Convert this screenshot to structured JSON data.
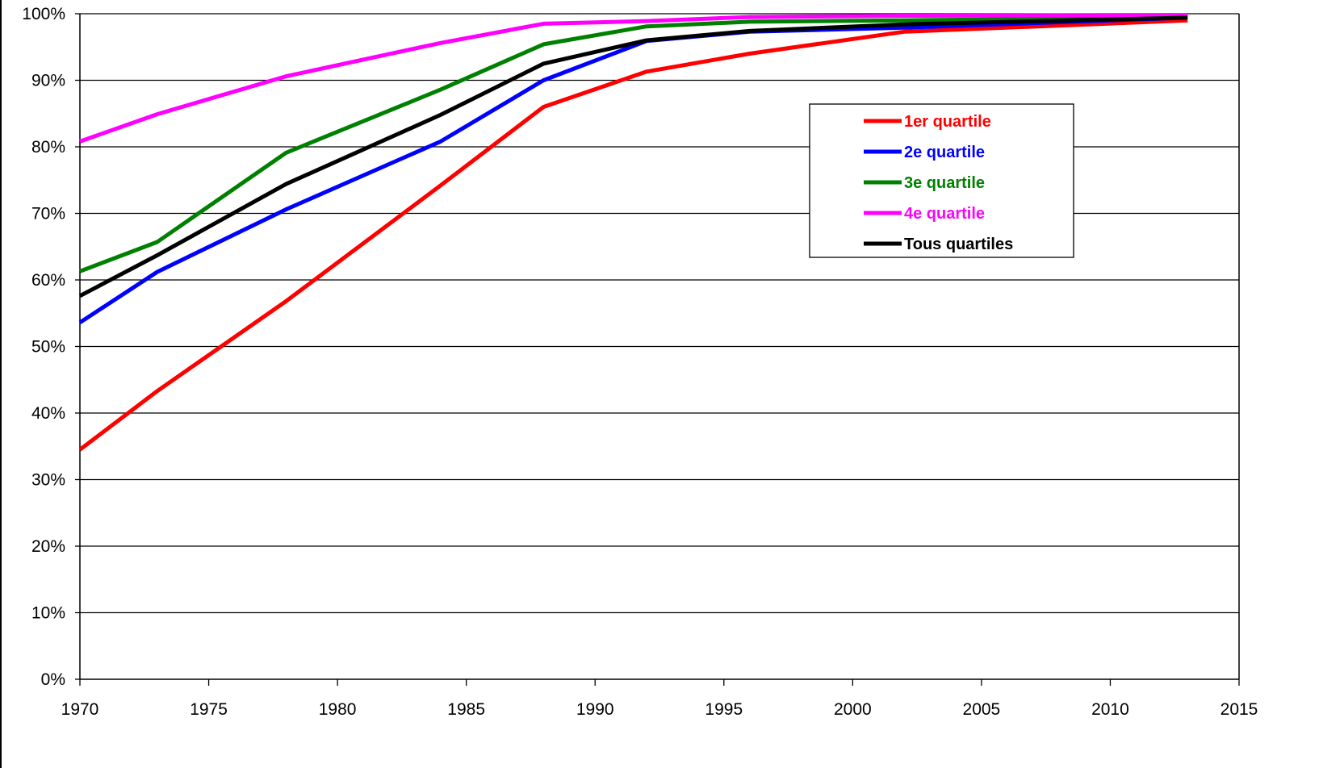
{
  "colors": {
    "background": "#ffffff",
    "gridline": "#000000",
    "axis": "#000000",
    "text": "#000000"
  },
  "chart_data": {
    "type": "line",
    "title": "",
    "xlabel": "",
    "ylabel": "",
    "xlim": [
      1970,
      2015
    ],
    "ylim": [
      0,
      100
    ],
    "x_ticks": [
      1970,
      1975,
      1980,
      1985,
      1990,
      1995,
      2000,
      2005,
      2010,
      2015
    ],
    "x_tick_labels": [
      "1970",
      "1975",
      "1980",
      "1985",
      "1990",
      "1995",
      "2000",
      "2005",
      "2010",
      "2015"
    ],
    "y_ticks": [
      0,
      10,
      20,
      30,
      40,
      50,
      60,
      70,
      80,
      90,
      100
    ],
    "y_tick_labels": [
      "0%",
      "10%",
      "20%",
      "30%",
      "40%",
      "50%",
      "60%",
      "70%",
      "80%",
      "90%",
      "100%"
    ],
    "grid": "horizontal",
    "legend_position": "right, upper",
    "x": [
      1970,
      1973,
      1978,
      1984,
      1988,
      1992,
      1996,
      2002,
      2013
    ],
    "series": [
      {
        "name": "1er quartile",
        "color": "#ff0000",
        "values": [
          34.5,
          43.3,
          56.8,
          74.2,
          86.0,
          91.3,
          94.0,
          97.3,
          99.0
        ]
      },
      {
        "name": "2e quartile",
        "color": "#0000ff",
        "values": [
          53.6,
          61.2,
          70.6,
          80.8,
          90.0,
          95.9,
          97.3,
          97.9,
          99.4
        ]
      },
      {
        "name": "3e quartile",
        "color": "#008000",
        "values": [
          61.3,
          65.7,
          79.1,
          88.6,
          95.4,
          98.1,
          98.8,
          99.0,
          99.5
        ]
      },
      {
        "name": "4e quartile",
        "color": "#ff00ff",
        "values": [
          80.8,
          84.9,
          90.6,
          95.6,
          98.5,
          98.9,
          99.5,
          99.7,
          99.8
        ]
      },
      {
        "name": "Tous quartiles",
        "color": "#000000",
        "values": [
          57.6,
          63.7,
          74.4,
          84.8,
          92.5,
          96.0,
          97.4,
          98.4,
          99.4
        ]
      }
    ]
  }
}
